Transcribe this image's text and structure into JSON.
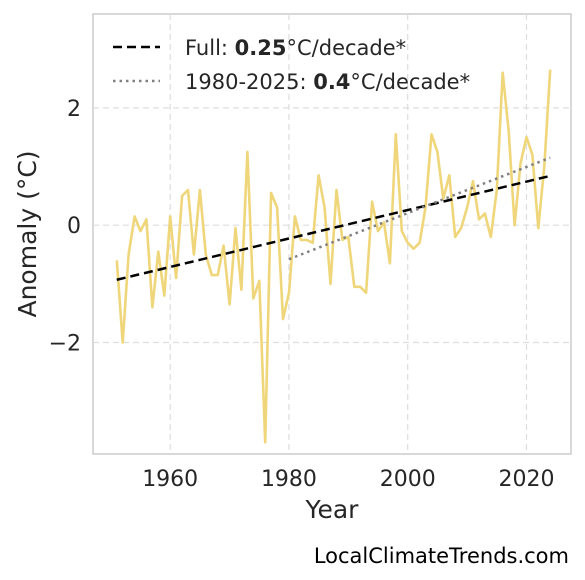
{
  "chart_data": {
    "type": "line",
    "title": "",
    "xlabel": "Year",
    "ylabel": "Anomaly (°C)",
    "xlim": [
      1947,
      2027.5
    ],
    "ylim": [
      -3.9,
      3.6
    ],
    "xticks": [
      1960,
      1980,
      2000,
      2020
    ],
    "yticks": [
      -2,
      0,
      2
    ],
    "ytick_labels": [
      "−2",
      "0",
      "2"
    ],
    "grid": true,
    "legend_placement": "top-left",
    "colors": {
      "series": "#f0d67a",
      "full_trend": "#000000",
      "recent_trend": "#808080",
      "grid": "#dddddd",
      "frame": "#cccccc"
    },
    "series": [
      {
        "x": [
          1951,
          1952,
          1953,
          1954,
          1955,
          1956,
          1957,
          1958,
          1959,
          1960,
          1961,
          1962,
          1963,
          1964,
          1965,
          1966,
          1967,
          1968,
          1969,
          1970,
          1971,
          1972,
          1973,
          1974,
          1975,
          1976,
          1977,
          1978,
          1979,
          1980,
          1981,
          1982,
          1983,
          1984,
          1985,
          1986,
          1987,
          1988,
          1989,
          1990,
          1991,
          1992,
          1993,
          1994,
          1995,
          1996,
          1997,
          1998,
          1999,
          2000,
          2001,
          2002,
          2003,
          2004,
          2005,
          2006,
          2007,
          2008,
          2009,
          2010,
          2011,
          2012,
          2013,
          2014,
          2015,
          2016,
          2017,
          2018,
          2019,
          2020,
          2021,
          2022,
          2023,
          2024
        ],
        "y": [
          -0.6,
          -2.0,
          -0.5,
          0.15,
          -0.1,
          0.1,
          -1.4,
          -0.45,
          -1.2,
          0.15,
          -0.9,
          0.5,
          0.6,
          -0.5,
          0.6,
          -0.5,
          -0.85,
          -0.85,
          -0.35,
          -1.35,
          -0.05,
          -1.1,
          1.25,
          -1.25,
          -0.95,
          -3.7,
          0.55,
          0.3,
          -1.6,
          -1.15,
          0.15,
          -0.25,
          -0.25,
          -0.3,
          0.85,
          0.3,
          -1.0,
          0.6,
          -0.25,
          -0.2,
          -1.05,
          -1.05,
          -1.15,
          0.4,
          -0.1,
          0.05,
          -0.65,
          1.55,
          -0.1,
          -0.3,
          -0.4,
          -0.3,
          0.3,
          1.55,
          1.25,
          0.45,
          0.85,
          -0.2,
          -0.05,
          0.3,
          0.75,
          0.1,
          0.2,
          -0.2,
          0.6,
          2.6,
          1.6,
          0.0,
          1.05,
          1.5,
          1.2,
          -0.05,
          1.0,
          2.65
        ]
      }
    ],
    "trend_lines": [
      {
        "label_prefix": "Full: ",
        "label_value": "0.25",
        "label_suffix": "°C/decade*",
        "style": "dashed",
        "x": [
          1951,
          2024
        ],
        "y": [
          -0.93,
          0.84
        ]
      },
      {
        "label_prefix": "1980-2025: ",
        "label_value": "0.4",
        "label_suffix": "°C/decade*",
        "style": "dotted",
        "x": [
          1980,
          2024
        ],
        "y": [
          -0.58,
          1.15
        ]
      }
    ]
  },
  "watermark": "LocalClimateTrends.com"
}
